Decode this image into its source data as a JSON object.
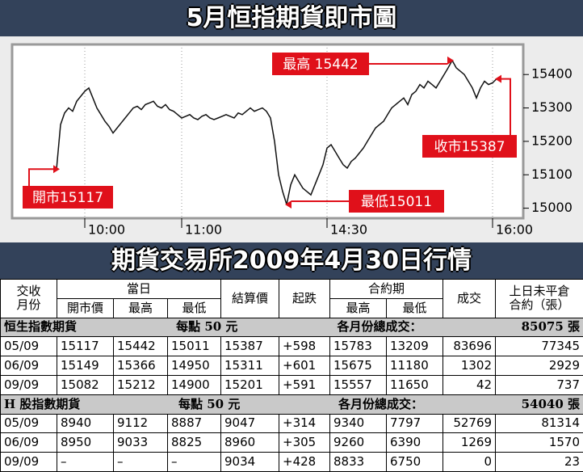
{
  "header": {
    "title": "5月恒指期貨即市圖"
  },
  "chart_data": {
    "type": "line",
    "color": "#111111",
    "categories": [
      null,
      null,
      null,
      null,
      null,
      null,
      null,
      "10:00",
      null,
      null,
      null,
      null,
      null,
      null,
      null,
      null,
      null,
      null,
      null,
      null,
      null,
      null,
      null,
      null,
      null,
      null,
      null,
      null,
      null,
      null,
      null,
      "11:00",
      null,
      null,
      null,
      null,
      null,
      null,
      null,
      null,
      null,
      null,
      null,
      null,
      null,
      null,
      null,
      null,
      null,
      null,
      null,
      null,
      null,
      null,
      null,
      null,
      null,
      null,
      null,
      null,
      null,
      null,
      null,
      null,
      null,
      null,
      null,
      "14:30",
      null,
      null,
      null,
      null,
      null,
      null,
      null,
      null,
      null,
      null,
      null,
      null,
      null,
      null,
      null,
      null,
      null,
      null,
      null,
      null,
      null,
      null,
      null,
      null,
      null,
      null,
      null,
      null,
      null,
      null,
      null,
      null,
      null,
      null,
      null,
      null,
      null,
      null,
      null,
      null,
      "16:00",
      null
    ],
    "values": [
      15117,
      15250,
      15285,
      15300,
      15290,
      15320,
      15335,
      15350,
      15360,
      15330,
      15300,
      15280,
      15260,
      15245,
      15225,
      15240,
      15255,
      15270,
      15285,
      15300,
      15305,
      15295,
      15310,
      15315,
      15320,
      15305,
      15300,
      15310,
      15295,
      15290,
      15280,
      15270,
      15275,
      15280,
      15270,
      15265,
      15275,
      15280,
      15270,
      15265,
      15270,
      15275,
      15280,
      15275,
      15270,
      15285,
      15280,
      15290,
      15300,
      15290,
      15295,
      15300,
      15290,
      15270,
      15200,
      15100,
      15050,
      15011,
      15070,
      15100,
      15080,
      15060,
      15050,
      15040,
      15070,
      15100,
      15130,
      15180,
      15190,
      15170,
      15150,
      15130,
      15120,
      15140,
      15150,
      15165,
      15180,
      15200,
      15220,
      15240,
      15250,
      15260,
      15280,
      15300,
      15310,
      15320,
      15330,
      15310,
      15340,
      15350,
      15370,
      15360,
      15380,
      15370,
      15360,
      15380,
      15400,
      15420,
      15442,
      15420,
      15410,
      15400,
      15380,
      15360,
      15330,
      15360,
      15380,
      15370,
      15375,
      15387
    ],
    "ylim": [
      14970,
      15490
    ],
    "yticks": [
      15000,
      15100,
      15200,
      15300,
      15400
    ],
    "xgrid": true,
    "annotations": [
      {
        "label": "開市15117",
        "value": 15117
      },
      {
        "label": "最高 15442",
        "value": 15442
      },
      {
        "label": "最低15011",
        "value": 15011
      },
      {
        "label": "收市15387",
        "value": 15387
      }
    ]
  },
  "table": {
    "title": "期貨交易所2009年4月30日行情",
    "header_row1": [
      "交收\n月份",
      "當日",
      "結算價",
      "起跌",
      "合約期",
      "成交",
      "上日未平倉\n合約（張）"
    ],
    "header_row2": [
      "開市價",
      "最高",
      "最低",
      "最高",
      "最低"
    ],
    "sections": [
      {
        "name": "恒生指數期貨",
        "unit": "每點 50 元",
        "total_label": "各月份總成交：",
        "total": "85075 張",
        "rows": [
          [
            "05/09",
            "15117",
            "15442",
            "15011",
            "15387",
            "+598",
            "15783",
            "13209",
            "83696",
            "77345"
          ],
          [
            "06/09",
            "15149",
            "15366",
            "14950",
            "15311",
            "+601",
            "15675",
            "11180",
            "1302",
            "2929"
          ],
          [
            "09/09",
            "15082",
            "15212",
            "14900",
            "15201",
            "+591",
            "15557",
            "11650",
            "42",
            "737"
          ]
        ]
      },
      {
        "name": "H 股指數期貨",
        "unit": "每點 50 元",
        "total_label": "各月份總成交：",
        "total": "54040 張",
        "rows": [
          [
            "05/09",
            "8940",
            "9112",
            "8887",
            "9047",
            "+314",
            "9340",
            "7797",
            "52769",
            "81314"
          ],
          [
            "06/09",
            "8950",
            "9033",
            "8825",
            "8960",
            "+305",
            "9260",
            "6390",
            "1269",
            "1570"
          ],
          [
            "09/09",
            "–",
            "–",
            "–",
            "9034",
            "+428",
            "8833",
            "6750",
            "0",
            "23"
          ]
        ]
      }
    ]
  }
}
